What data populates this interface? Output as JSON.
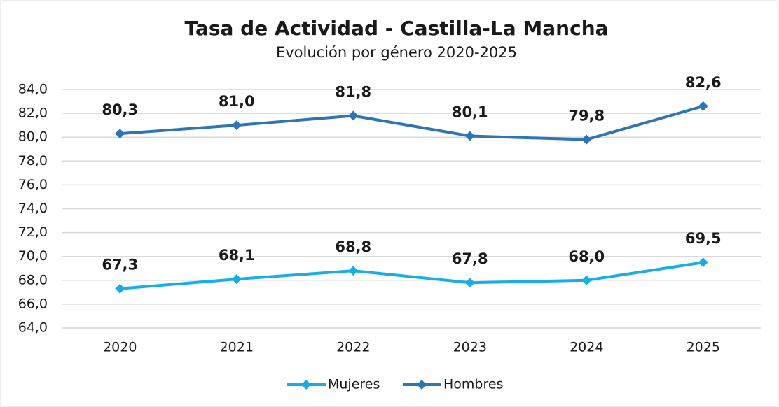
{
  "chart_data": {
    "type": "line",
    "title": "Tasa de Actividad - Castilla-La Mancha",
    "subtitle": "Evolución por género 2020-2025",
    "categories": [
      "2020",
      "2021",
      "2022",
      "2023",
      "2024",
      "2025"
    ],
    "series": [
      {
        "name": "Mujeres",
        "color": "#17aee6",
        "values": [
          67.3,
          68.1,
          68.8,
          67.8,
          68.0,
          69.5
        ],
        "value_labels": [
          "67,3",
          "68,1",
          "68,8",
          "67,8",
          "68,0",
          "69,5"
        ]
      },
      {
        "name": "Hombres",
        "color": "#2e75b6",
        "values": [
          80.3,
          81.0,
          81.8,
          80.1,
          79.8,
          82.6
        ],
        "value_labels": [
          "80,3",
          "81,0",
          "81,8",
          "80,1",
          "79,8",
          "82,6"
        ]
      }
    ],
    "ylim": [
      64,
      84
    ],
    "yticks": [
      {
        "value": 64,
        "label": "64,0"
      },
      {
        "value": 66,
        "label": "66,0"
      },
      {
        "value": 68,
        "label": "68,0"
      },
      {
        "value": 70,
        "label": "70,0"
      },
      {
        "value": 72,
        "label": "72,0"
      },
      {
        "value": 74,
        "label": "74,0"
      },
      {
        "value": 76,
        "label": "76,0"
      },
      {
        "value": 78,
        "label": "78,0"
      },
      {
        "value": 80,
        "label": "80,0"
      },
      {
        "value": 82,
        "label": "82,0"
      },
      {
        "value": 84,
        "label": "84,0"
      }
    ],
    "grid": true,
    "legend": "bottom"
  }
}
